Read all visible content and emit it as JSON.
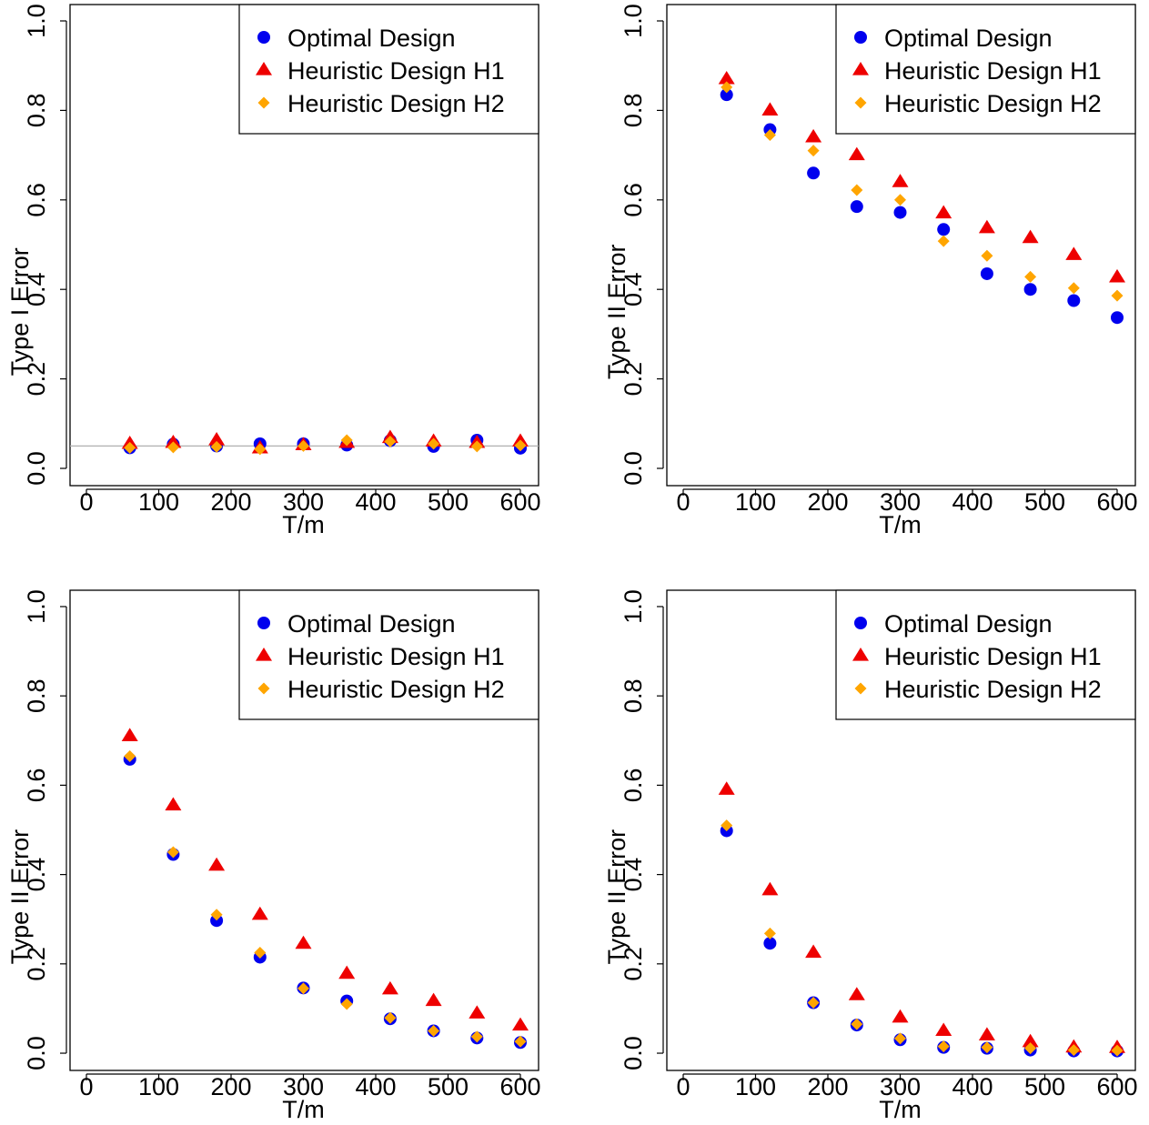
{
  "chart_data": [
    {
      "type": "scatter",
      "xlabel": "T/m",
      "ylabel": "Type I Error",
      "xlim": [
        0,
        600
      ],
      "ylim": [
        0,
        1
      ],
      "x_ticks": [
        "0",
        "100",
        "200",
        "300",
        "400",
        "500",
        "600"
      ],
      "y_ticks": [
        "0.0",
        "0.2",
        "0.4",
        "0.6",
        "0.8",
        "1.0"
      ],
      "reference_line": 0.05,
      "legend_position": "top-right",
      "x": [
        60,
        120,
        180,
        240,
        300,
        360,
        420,
        480,
        540,
        600
      ],
      "series": [
        {
          "name": "Optimal Design",
          "color": "#0000ee",
          "marker": "circle",
          "values": [
            0.046,
            0.054,
            0.05,
            0.055,
            0.055,
            0.052,
            0.062,
            0.049,
            0.063,
            0.045
          ]
        },
        {
          "name": "Heuristic Design H1",
          "color": "#ee0000",
          "marker": "triangle",
          "values": [
            0.055,
            0.057,
            0.063,
            0.045,
            0.052,
            0.057,
            0.068,
            0.06,
            0.057,
            0.06
          ]
        },
        {
          "name": "Heuristic Design H2",
          "color": "#ffa500",
          "marker": "diamond",
          "values": [
            0.046,
            0.047,
            0.048,
            0.043,
            0.05,
            0.063,
            0.06,
            0.055,
            0.049,
            0.051
          ]
        }
      ]
    },
    {
      "type": "scatter",
      "xlabel": "T/m",
      "ylabel": "Type II Error",
      "xlim": [
        0,
        600
      ],
      "ylim": [
        0,
        1
      ],
      "x_ticks": [
        "0",
        "100",
        "200",
        "300",
        "400",
        "500",
        "600"
      ],
      "y_ticks": [
        "0.0",
        "0.2",
        "0.4",
        "0.6",
        "0.8",
        "1.0"
      ],
      "legend_position": "top-right",
      "x": [
        60,
        120,
        180,
        240,
        300,
        360,
        420,
        480,
        540,
        600
      ],
      "series": [
        {
          "name": "Optimal Design",
          "color": "#0000ee",
          "marker": "circle",
          "values": [
            0.835,
            0.757,
            0.66,
            0.585,
            0.572,
            0.534,
            0.435,
            0.4,
            0.375,
            0.337
          ]
        },
        {
          "name": "Heuristic Design H1",
          "color": "#ee0000",
          "marker": "triangle",
          "values": [
            0.87,
            0.8,
            0.74,
            0.7,
            0.64,
            0.57,
            0.537,
            0.515,
            0.477,
            0.427
          ]
        },
        {
          "name": "Heuristic Design H2",
          "color": "#ffa500",
          "marker": "diamond",
          "values": [
            0.852,
            0.745,
            0.71,
            0.622,
            0.6,
            0.508,
            0.475,
            0.428,
            0.403,
            0.386
          ]
        }
      ]
    },
    {
      "type": "scatter",
      "xlabel": "T/m",
      "ylabel": "Type II Error",
      "xlim": [
        0,
        600
      ],
      "ylim": [
        0,
        1
      ],
      "x_ticks": [
        "0",
        "100",
        "200",
        "300",
        "400",
        "500",
        "600"
      ],
      "y_ticks": [
        "0.0",
        "0.2",
        "0.4",
        "0.6",
        "0.8",
        "1.0"
      ],
      "legend_position": "top-right",
      "x": [
        60,
        120,
        180,
        240,
        300,
        360,
        420,
        480,
        540,
        600
      ],
      "series": [
        {
          "name": "Optimal Design",
          "color": "#0000ee",
          "marker": "circle",
          "values": [
            0.658,
            0.445,
            0.297,
            0.215,
            0.146,
            0.117,
            0.077,
            0.05,
            0.034,
            0.024
          ]
        },
        {
          "name": "Heuristic Design H1",
          "color": "#ee0000",
          "marker": "triangle",
          "values": [
            0.71,
            0.555,
            0.42,
            0.31,
            0.245,
            0.178,
            0.143,
            0.117,
            0.089,
            0.062
          ]
        },
        {
          "name": "Heuristic Design H2",
          "color": "#ffa500",
          "marker": "diamond",
          "values": [
            0.665,
            0.45,
            0.31,
            0.225,
            0.145,
            0.11,
            0.079,
            0.05,
            0.037,
            0.026
          ]
        }
      ]
    },
    {
      "type": "scatter",
      "xlabel": "T/m",
      "ylabel": "Type II Error",
      "xlim": [
        0,
        600
      ],
      "ylim": [
        0,
        1
      ],
      "x_ticks": [
        "0",
        "100",
        "200",
        "300",
        "400",
        "500",
        "600"
      ],
      "y_ticks": [
        "0.0",
        "0.2",
        "0.4",
        "0.6",
        "0.8",
        "1.0"
      ],
      "legend_position": "top-right",
      "x": [
        60,
        120,
        180,
        240,
        300,
        360,
        420,
        480,
        540,
        600
      ],
      "series": [
        {
          "name": "Optimal Design",
          "color": "#0000ee",
          "marker": "circle",
          "values": [
            0.498,
            0.246,
            0.113,
            0.063,
            0.03,
            0.013,
            0.011,
            0.007,
            0.005,
            0.005
          ]
        },
        {
          "name": "Heuristic Design H1",
          "color": "#ee0000",
          "marker": "triangle",
          "values": [
            0.59,
            0.365,
            0.225,
            0.13,
            0.08,
            0.05,
            0.04,
            0.025,
            0.013,
            0.012
          ]
        },
        {
          "name": "Heuristic Design H2",
          "color": "#ffa500",
          "marker": "diamond",
          "values": [
            0.51,
            0.268,
            0.113,
            0.065,
            0.033,
            0.015,
            0.013,
            0.011,
            0.007,
            0.006
          ]
        }
      ]
    }
  ]
}
